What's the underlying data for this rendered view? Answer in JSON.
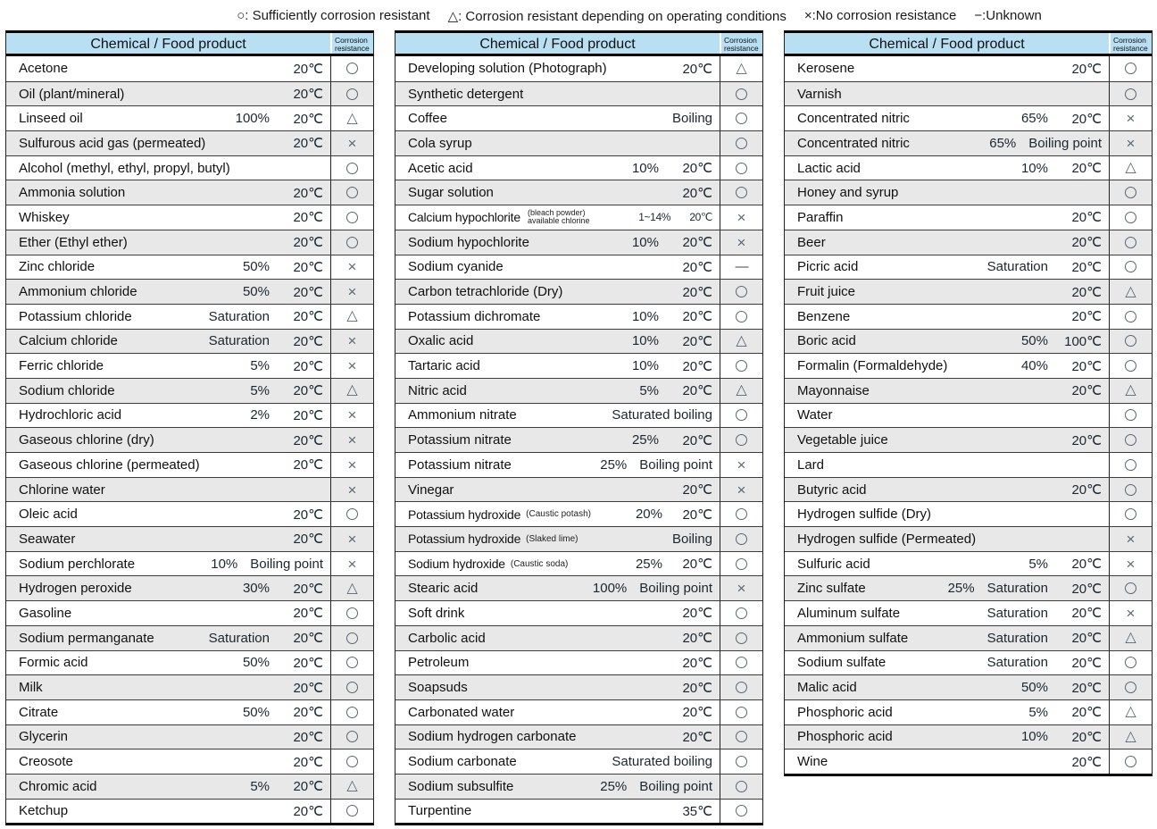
{
  "legend": {
    "items": [
      "○: Sufficiently corrosion resistant",
      "△: Corrosion resistant depending on operating conditions",
      "×:No corrosion resistance",
      "−:Unknown"
    ]
  },
  "header": {
    "product": "Chemical / Food product",
    "resistance_line1": "Corrosion",
    "resistance_line2": "resistance"
  },
  "symbols": {
    "circle": "○",
    "triangle": "△",
    "cross": "×",
    "dash": "—"
  },
  "colors": {
    "header_bg": "#b8dff2",
    "stripe_bg": "#e8e8e8",
    "symbol": "#5a6673",
    "border": "#000000"
  },
  "tables": [
    {
      "rows": [
        {
          "name": "Acetone",
          "values": [
            "20℃"
          ],
          "rating": "circle"
        },
        {
          "name": "Oil (plant/mineral)",
          "values": [
            "20℃"
          ],
          "rating": "circle"
        },
        {
          "name": "Linseed oil",
          "values": [
            "100%",
            "20℃"
          ],
          "rating": "triangle"
        },
        {
          "name": "Sulfurous acid gas (permeated)",
          "values": [
            "20℃"
          ],
          "rating": "cross"
        },
        {
          "name": "Alcohol (methyl, ethyl, propyl, butyl)",
          "values": [],
          "rating": "circle"
        },
        {
          "name": "Ammonia solution",
          "values": [
            "20℃"
          ],
          "rating": "circle"
        },
        {
          "name": "Whiskey",
          "values": [
            "20℃"
          ],
          "rating": "circle"
        },
        {
          "name": "Ether (Ethyl ether)",
          "values": [
            "20℃"
          ],
          "rating": "circle"
        },
        {
          "name": "Zinc chloride",
          "values": [
            "50%",
            "20℃"
          ],
          "rating": "cross"
        },
        {
          "name": "Ammonium chloride",
          "values": [
            "50%",
            "20℃"
          ],
          "rating": "cross"
        },
        {
          "name": "Potassium chloride",
          "values": [
            "Saturation",
            "20℃"
          ],
          "rating": "triangle"
        },
        {
          "name": "Calcium chloride",
          "values": [
            "Saturation",
            "20℃"
          ],
          "rating": "cross"
        },
        {
          "name": "Ferric chloride",
          "values": [
            "5%",
            "20℃"
          ],
          "rating": "cross"
        },
        {
          "name": "Sodium chloride",
          "values": [
            "5%",
            "20℃"
          ],
          "rating": "triangle"
        },
        {
          "name": "Hydrochloric acid",
          "values": [
            "2%",
            "20℃"
          ],
          "rating": "cross"
        },
        {
          "name": "Gaseous chlorine (dry)",
          "values": [
            "20℃"
          ],
          "rating": "cross"
        },
        {
          "name": "Gaseous chlorine (permeated)",
          "values": [
            "20℃"
          ],
          "rating": "cross"
        },
        {
          "name": "Chlorine water",
          "values": [],
          "rating": "cross"
        },
        {
          "name": "Oleic acid",
          "values": [
            "20℃"
          ],
          "rating": "circle"
        },
        {
          "name": "Seawater",
          "values": [
            "20℃"
          ],
          "rating": "cross"
        },
        {
          "name": "Sodium perchlorate",
          "values": [
            "10%",
            "Boiling point"
          ],
          "rating": "cross"
        },
        {
          "name": "Hydrogen peroxide",
          "values": [
            "30%",
            "20℃"
          ],
          "rating": "triangle"
        },
        {
          "name": "Gasoline",
          "values": [
            "20℃"
          ],
          "rating": "circle"
        },
        {
          "name": "Sodium permanganate",
          "values": [
            "Saturation",
            "20℃"
          ],
          "rating": "circle"
        },
        {
          "name": "Formic acid",
          "values": [
            "50%",
            "20℃"
          ],
          "rating": "circle"
        },
        {
          "name": "Milk",
          "values": [
            "20℃"
          ],
          "rating": "circle"
        },
        {
          "name": "Citrate",
          "values": [
            "50%",
            "20℃"
          ],
          "rating": "circle"
        },
        {
          "name": "Glycerin",
          "values": [
            "20℃"
          ],
          "rating": "circle"
        },
        {
          "name": "Creosote",
          "values": [
            "20℃"
          ],
          "rating": "circle"
        },
        {
          "name": "Chromic acid",
          "values": [
            "5%",
            "20℃"
          ],
          "rating": "triangle"
        },
        {
          "name": "Ketchup",
          "values": [
            "20℃"
          ],
          "rating": "circle"
        }
      ]
    },
    {
      "rows": [
        {
          "name": "Developing solution (Photograph)",
          "values": [
            "20℃"
          ],
          "rating": "triangle"
        },
        {
          "name": "Synthetic detergent",
          "values": [],
          "rating": "circle"
        },
        {
          "name": "Coffee",
          "values": [
            "Boiling"
          ],
          "rating": "circle"
        },
        {
          "name": "Cola syrup",
          "values": [],
          "rating": "circle"
        },
        {
          "name": "Acetic acid",
          "values": [
            "10%",
            "20℃"
          ],
          "rating": "circle"
        },
        {
          "name": "Sugar solution",
          "values": [
            "20℃"
          ],
          "rating": "circle"
        },
        {
          "name": "Calcium hypochlorite",
          "note": [
            "(bleach powder)",
            "available chlorine"
          ],
          "values": [
            "1~14%",
            "20℃"
          ],
          "rating": "cross",
          "condensed": true
        },
        {
          "name": "Sodium hypochlorite",
          "values": [
            "10%",
            "20℃"
          ],
          "rating": "cross"
        },
        {
          "name": "Sodium cyanide",
          "values": [
            "20℃"
          ],
          "rating": "dash"
        },
        {
          "name": "Carbon tetrachloride (Dry)",
          "values": [
            "20℃"
          ],
          "rating": "circle"
        },
        {
          "name": "Potassium dichromate",
          "values": [
            "10%",
            "20℃"
          ],
          "rating": "circle"
        },
        {
          "name": "Oxalic acid",
          "values": [
            "10%",
            "20℃"
          ],
          "rating": "triangle"
        },
        {
          "name": "Tartaric acid",
          "values": [
            "10%",
            "20℃"
          ],
          "rating": "circle"
        },
        {
          "name": "Nitric acid",
          "values": [
            "5%",
            "20℃"
          ],
          "rating": "triangle"
        },
        {
          "name": "Ammonium nitrate",
          "values": [
            "Saturated boiling"
          ],
          "rating": "circle"
        },
        {
          "name": "Potassium nitrate",
          "values": [
            "25%",
            "20℃"
          ],
          "rating": "circle"
        },
        {
          "name": "Potassium nitrate",
          "values": [
            "25%",
            "Boiling point"
          ],
          "rating": "cross"
        },
        {
          "name": "Vinegar",
          "values": [
            "20℃"
          ],
          "rating": "cross"
        },
        {
          "name": "Potassium hydroxide",
          "note": [
            "(Caustic potash)"
          ],
          "values": [
            "20%",
            "20℃"
          ],
          "rating": "circle"
        },
        {
          "name": "Potassium hydroxide",
          "note": [
            "(Slaked lime)"
          ],
          "values": [
            "Boiling"
          ],
          "rating": "circle"
        },
        {
          "name": "Sodium hydroxide",
          "note": [
            "(Caustic soda)"
          ],
          "values": [
            "25%",
            "20℃"
          ],
          "rating": "circle"
        },
        {
          "name": "Stearic acid",
          "values": [
            "100%",
            "Boiling point"
          ],
          "rating": "cross"
        },
        {
          "name": "Soft drink",
          "values": [
            "20℃"
          ],
          "rating": "circle"
        },
        {
          "name": "Carbolic acid",
          "values": [
            "20℃"
          ],
          "rating": "circle"
        },
        {
          "name": "Petroleum",
          "values": [
            "20℃"
          ],
          "rating": "circle"
        },
        {
          "name": "Soapsuds",
          "values": [
            "20℃"
          ],
          "rating": "circle"
        },
        {
          "name": "Carbonated water",
          "values": [
            "20℃"
          ],
          "rating": "circle"
        },
        {
          "name": "Sodium hydrogen carbonate",
          "values": [
            "20℃"
          ],
          "rating": "circle"
        },
        {
          "name": "Sodium carbonate",
          "values": [
            "Saturated boiling"
          ],
          "rating": "circle"
        },
        {
          "name": "Sodium subsulfite",
          "values": [
            "25%",
            "Boiling point"
          ],
          "rating": "circle"
        },
        {
          "name": "Turpentine",
          "values": [
            "35℃"
          ],
          "rating": "circle"
        }
      ]
    },
    {
      "rows": [
        {
          "name": "Kerosene",
          "values": [
            "20℃"
          ],
          "rating": "circle"
        },
        {
          "name": "Varnish",
          "values": [],
          "rating": "circle"
        },
        {
          "name": "Concentrated nitric",
          "values": [
            "65%",
            "20℃"
          ],
          "rating": "cross"
        },
        {
          "name": "Concentrated nitric",
          "values": [
            "65%",
            "Boiling point"
          ],
          "rating": "cross"
        },
        {
          "name": "Lactic acid",
          "values": [
            "10%",
            "20℃"
          ],
          "rating": "triangle"
        },
        {
          "name": "Honey and syrup",
          "values": [],
          "rating": "circle"
        },
        {
          "name": "Paraffin",
          "values": [
            "20℃"
          ],
          "rating": "circle"
        },
        {
          "name": "Beer",
          "values": [
            "20℃"
          ],
          "rating": "circle"
        },
        {
          "name": "Picric acid",
          "values": [
            "Saturation",
            "20℃"
          ],
          "rating": "circle"
        },
        {
          "name": "Fruit juice",
          "values": [
            "20℃"
          ],
          "rating": "triangle"
        },
        {
          "name": "Benzene",
          "values": [
            "20℃"
          ],
          "rating": "circle"
        },
        {
          "name": "Boric acid",
          "values": [
            "50%",
            "100℃"
          ],
          "rating": "circle"
        },
        {
          "name": "Formalin (Formaldehyde)",
          "values": [
            "40%",
            "20℃"
          ],
          "rating": "circle"
        },
        {
          "name": "Mayonnaise",
          "values": [
            "20℃"
          ],
          "rating": "triangle"
        },
        {
          "name": "Water",
          "values": [],
          "rating": "circle"
        },
        {
          "name": "Vegetable juice",
          "values": [
            "20℃"
          ],
          "rating": "circle"
        },
        {
          "name": "Lard",
          "values": [],
          "rating": "circle"
        },
        {
          "name": "Butyric acid",
          "values": [
            "20℃"
          ],
          "rating": "circle"
        },
        {
          "name": "Hydrogen sulfide (Dry)",
          "values": [],
          "rating": "circle"
        },
        {
          "name": "Hydrogen sulfide (Permeated)",
          "values": [],
          "rating": "cross"
        },
        {
          "name": "Sulfuric acid",
          "values": [
            "5%",
            "20℃"
          ],
          "rating": "cross"
        },
        {
          "name": "Zinc sulfate",
          "values": [
            "25%",
            "Saturation",
            "20℃"
          ],
          "rating": "circle"
        },
        {
          "name": "Aluminum sulfate",
          "values": [
            "Saturation",
            "20℃"
          ],
          "rating": "cross"
        },
        {
          "name": "Ammonium sulfate",
          "values": [
            "Saturation",
            "20℃"
          ],
          "rating": "triangle"
        },
        {
          "name": "Sodium sulfate",
          "values": [
            "Saturation",
            "20℃"
          ],
          "rating": "circle"
        },
        {
          "name": "Malic acid",
          "values": [
            "50%",
            "20℃"
          ],
          "rating": "circle"
        },
        {
          "name": "Phosphoric acid",
          "values": [
            "5%",
            "20℃"
          ],
          "rating": "triangle"
        },
        {
          "name": "Phosphoric acid",
          "values": [
            "10%",
            "20℃"
          ],
          "rating": "triangle"
        },
        {
          "name": "Wine",
          "values": [
            "20℃"
          ],
          "rating": "circle"
        }
      ]
    }
  ]
}
